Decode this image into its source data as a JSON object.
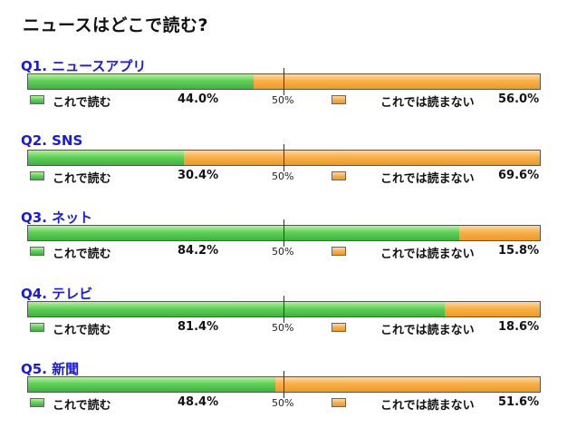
{
  "title": "ニュースはどこで読む?",
  "midpoint_label": "50%",
  "legend": {
    "read": "これで読む",
    "not_read": "これでは読まない"
  },
  "colors": {
    "read": "#4cc24a",
    "not_read": "#f5a83a",
    "question": "#1a1adf"
  },
  "chart_data": {
    "type": "bar",
    "orientation": "horizontal-stacked",
    "title": "ニュースはどこで読む?",
    "categories": [
      "Q1. ニュースアプリ",
      "Q2. SNS",
      "Q3. ネット",
      "Q4. テレビ",
      "Q5. 新聞"
    ],
    "series": [
      {
        "name": "これで読む",
        "values": [
          44.0,
          30.4,
          84.2,
          81.4,
          48.4
        ]
      },
      {
        "name": "これでは読まない",
        "values": [
          56.0,
          69.6,
          15.8,
          18.6,
          51.6
        ]
      }
    ],
    "value_labels": {
      "read": [
        "44.0%",
        "30.4%",
        "84.2%",
        "81.4%",
        "48.4%"
      ],
      "not_read": [
        "56.0%",
        "69.6%",
        "15.8%",
        "18.6%",
        "51.6%"
      ]
    },
    "xlim": [
      0,
      100
    ]
  }
}
